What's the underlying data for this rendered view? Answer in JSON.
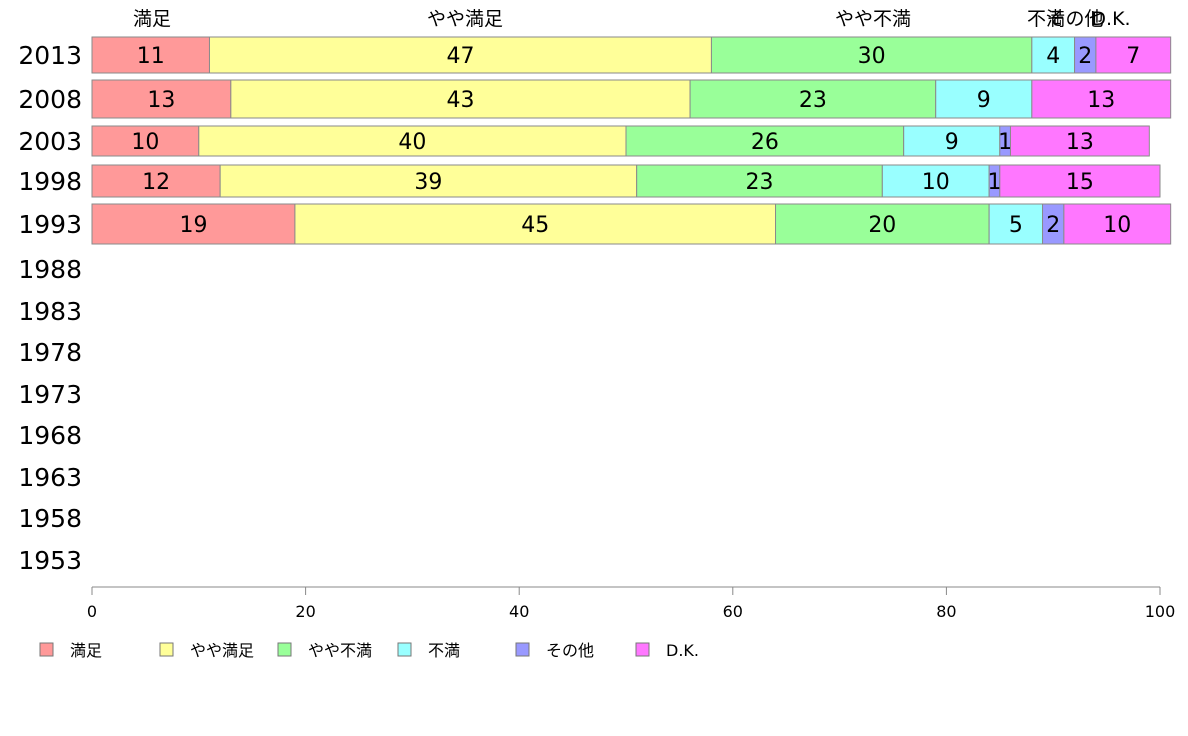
{
  "chart_data": {
    "type": "bar",
    "orientation": "horizontal",
    "stacked": true,
    "xlim": [
      0,
      100
    ],
    "x_ticks": [
      "0",
      "20",
      "40",
      "60",
      "80",
      "100"
    ],
    "categories": [
      "2013",
      "2008",
      "2003",
      "1998",
      "1993",
      "1988",
      "1983",
      "1978",
      "1973",
      "1968",
      "1963",
      "1958",
      "1953"
    ],
    "top_labels": [
      "満足",
      "やや満足",
      "やや不満",
      "不満",
      "その他",
      "D.K."
    ],
    "series": [
      {
        "name": "満足",
        "color": "#FF9999",
        "values": [
          11,
          13,
          10,
          12,
          19,
          null,
          null,
          null,
          null,
          null,
          null,
          null,
          null
        ]
      },
      {
        "name": "やや満足",
        "color": "#FFFF99",
        "values": [
          47,
          43,
          40,
          39,
          45,
          null,
          null,
          null,
          null,
          null,
          null,
          null,
          null
        ]
      },
      {
        "name": "やや不満",
        "color": "#99FF99",
        "values": [
          30,
          23,
          26,
          23,
          20,
          null,
          null,
          null,
          null,
          null,
          null,
          null,
          null
        ]
      },
      {
        "name": "不満",
        "color": "#99FFFF",
        "values": [
          4,
          9,
          9,
          10,
          5,
          null,
          null,
          null,
          null,
          null,
          null,
          null,
          null
        ]
      },
      {
        "name": "その他",
        "color": "#9999FF",
        "values": [
          2,
          0,
          1,
          1,
          2,
          null,
          null,
          null,
          null,
          null,
          null,
          null,
          null
        ]
      },
      {
        "name": "D.K.",
        "color": "#FF77FF",
        "values": [
          7,
          13,
          13,
          15,
          10,
          null,
          null,
          null,
          null,
          null,
          null,
          null,
          null
        ]
      }
    ],
    "legend": {
      "position": "bottom-left"
    },
    "grid": false
  }
}
